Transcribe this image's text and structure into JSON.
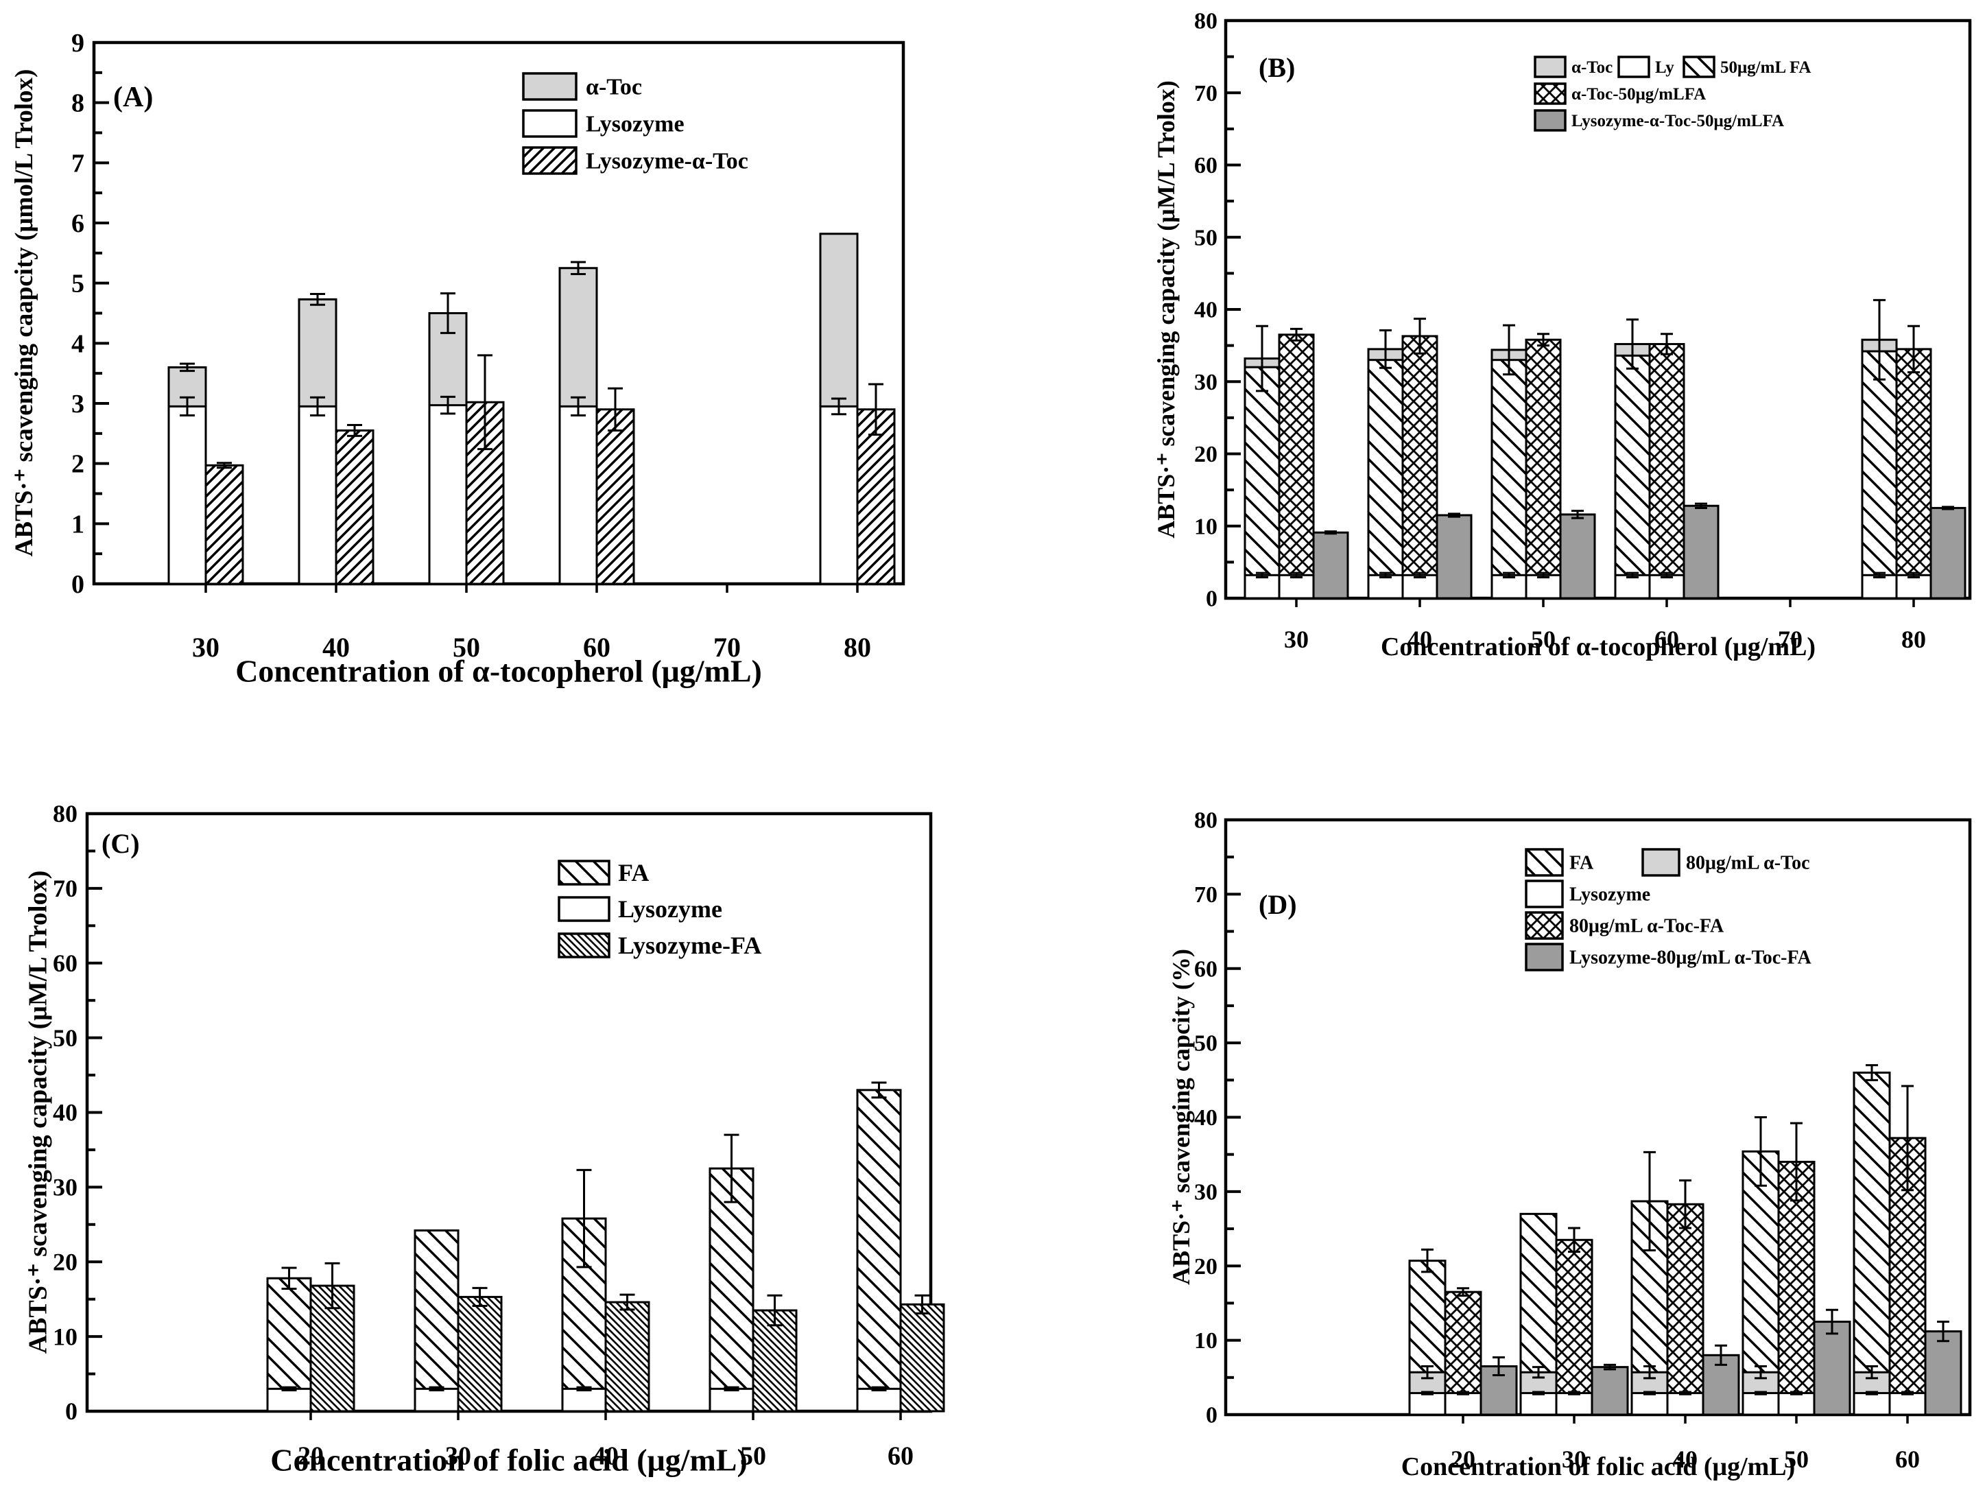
{
  "figure": {
    "background": "#ffffff",
    "colors": {
      "light_gray": "#d4d4d4",
      "dark_gray": "#9c9c9c",
      "line": "#000000",
      "bar_fill_white": "#ffffff"
    }
  },
  "chart_data": [
    {
      "id": "A",
      "type": "bar",
      "panel_label": "(A)",
      "ylabel": "ABTS·⁺ scavenging caapcity (μmol/L Trolox)",
      "xlabel": "Concentration of α-tocopherol (μg/mL)",
      "ylim": [
        0,
        9
      ],
      "ytick_major": 1,
      "ytick_minor": 0.5,
      "grid": false,
      "legend_position": "inside top-right",
      "categories": [
        30,
        40,
        50,
        60,
        70,
        80
      ],
      "series": [
        {
          "key": "atoc",
          "name": "α-Toc",
          "style": "solid-lightgray"
        },
        {
          "key": "ly",
          "name": "Lysozyme",
          "style": "solid-white"
        },
        {
          "key": "lt",
          "name": "Lysozyme-α-Toc",
          "style": "hatch-forward"
        }
      ],
      "columns": [
        [
          "atoc",
          "ly"
        ],
        [
          "lt"
        ]
      ],
      "legend_rows": [
        [
          "atoc"
        ],
        [
          "ly"
        ],
        [
          "lt"
        ]
      ],
      "groups": [
        {
          "category": 30,
          "bars": {
            "atoc": {
              "value": 3.6,
              "err": 0.06
            },
            "ly": {
              "value": 2.95,
              "err": 0.15
            },
            "lt": {
              "value": 1.97,
              "err": 0.04
            }
          }
        },
        {
          "category": 40,
          "bars": {
            "atoc": {
              "value": 4.73,
              "err": 0.09
            },
            "ly": {
              "value": 2.95,
              "err": 0.15
            },
            "lt": {
              "value": 2.55,
              "err": 0.09
            }
          }
        },
        {
          "category": 50,
          "bars": {
            "atoc": {
              "value": 4.5,
              "err": 0.33
            },
            "ly": {
              "value": 2.97,
              "err": 0.14
            },
            "lt": {
              "value": 3.02,
              "err": 0.78
            }
          }
        },
        {
          "category": 60,
          "bars": {
            "atoc": {
              "value": 5.25,
              "err": 0.1
            },
            "ly": {
              "value": 2.95,
              "err": 0.15
            },
            "lt": {
              "value": 2.9,
              "err": 0.35
            }
          }
        },
        {
          "category": 70,
          "bars": {}
        },
        {
          "category": 80,
          "bars": {
            "atoc": {
              "value": 5.82,
              "err": 0
            },
            "ly": {
              "value": 2.95,
              "err": 0.13
            },
            "lt": {
              "value": 2.9,
              "err": 0.42
            }
          }
        }
      ]
    },
    {
      "id": "B",
      "type": "bar",
      "panel_label": "(B)",
      "ylabel": "ABTS·⁺ scavenging capacity (μM/L Trolox)",
      "xlabel": "Concentration of α-tocopherol (μg/mL)",
      "ylim": [
        0,
        80
      ],
      "ytick_major": 10,
      "ytick_minor": 5,
      "grid": false,
      "legend_position": "inside top-center",
      "categories": [
        30,
        40,
        50,
        60,
        70,
        80
      ],
      "series": [
        {
          "key": "atoc",
          "name": "α-Toc",
          "style": "solid-lightgray"
        },
        {
          "key": "ly",
          "name": "Ly",
          "style": "solid-white"
        },
        {
          "key": "fa",
          "name": "50μg/mL FA",
          "style": "hatch-back-wide"
        },
        {
          "key": "xfa",
          "name": "α-Toc-50μg/mLFA",
          "style": "crosshatch"
        },
        {
          "key": "dark",
          "name": "Lysozyme-α-Toc-50μg/mLFA",
          "style": "solid-darkgray"
        }
      ],
      "columns": [
        [
          "atoc",
          "fa",
          "ly"
        ],
        [
          "xfa",
          "ly2"
        ],
        [
          "dark"
        ]
      ],
      "legend_rows": [
        [
          "atoc",
          "ly",
          "fa"
        ],
        [
          "xfa"
        ],
        [
          "dark"
        ]
      ],
      "groups": [
        {
          "category": 30,
          "bars": {
            "atoc": {
              "value": 33.2,
              "err": 4.5
            },
            "fa": {
              "value": 32.0,
              "err": 0
            },
            "ly": {
              "value": 3.2,
              "err": 0.3
            },
            "ly2": {
              "value": 3.2,
              "err": 0.3
            },
            "xfa": {
              "value": 36.5,
              "err": 0.8
            },
            "dark": {
              "value": 9.1,
              "err": 0.15
            }
          }
        },
        {
          "category": 40,
          "bars": {
            "atoc": {
              "value": 34.5,
              "err": 2.6
            },
            "fa": {
              "value": 33.0,
              "err": 0
            },
            "ly": {
              "value": 3.2,
              "err": 0.3
            },
            "ly2": {
              "value": 3.2,
              "err": 0.3
            },
            "xfa": {
              "value": 36.3,
              "err": 2.4
            },
            "dark": {
              "value": 11.5,
              "err": 0.2
            }
          }
        },
        {
          "category": 50,
          "bars": {
            "atoc": {
              "value": 34.4,
              "err": 3.4
            },
            "fa": {
              "value": 33.0,
              "err": 0
            },
            "ly": {
              "value": 3.2,
              "err": 0.3
            },
            "ly2": {
              "value": 3.2,
              "err": 0.3
            },
            "xfa": {
              "value": 35.8,
              "err": 0.8
            },
            "dark": {
              "value": 11.6,
              "err": 0.5
            }
          }
        },
        {
          "category": 60,
          "bars": {
            "atoc": {
              "value": 35.2,
              "err": 3.4
            },
            "fa": {
              "value": 33.6,
              "err": 0
            },
            "ly": {
              "value": 3.2,
              "err": 0.3
            },
            "ly2": {
              "value": 3.2,
              "err": 0.3
            },
            "xfa": {
              "value": 35.2,
              "err": 1.4
            },
            "dark": {
              "value": 12.8,
              "err": 0.3
            }
          }
        },
        {
          "category": 70,
          "bars": {}
        },
        {
          "category": 80,
          "bars": {
            "atoc": {
              "value": 35.8,
              "err": 5.5
            },
            "fa": {
              "value": 34.2,
              "err": 0
            },
            "ly": {
              "value": 3.2,
              "err": 0.3
            },
            "ly2": {
              "value": 3.2,
              "err": 0.3
            },
            "xfa": {
              "value": 34.5,
              "err": 3.2
            },
            "dark": {
              "value": 12.5,
              "err": 0.15
            }
          }
        }
      ]
    },
    {
      "id": "C",
      "type": "bar",
      "panel_label": "(C)",
      "ylabel": "ABTS·⁺ scavenging capacity (μM/L Trolox)",
      "xlabel": "Concentration of folic acid (μg/mL)",
      "ylim": [
        0,
        80
      ],
      "ytick_major": 10,
      "ytick_minor": 5,
      "grid": false,
      "legend_position": "inside top-right",
      "categories": [
        20,
        30,
        40,
        50,
        60
      ],
      "series": [
        {
          "key": "fa",
          "name": "FA",
          "style": "hatch-back-wide"
        },
        {
          "key": "ly",
          "name": "Lysozyme",
          "style": "solid-white"
        },
        {
          "key": "lfa",
          "name": "Lysozyme-FA",
          "style": "hatch-back-dense"
        }
      ],
      "columns": [
        [
          "fa",
          "ly"
        ],
        [
          "lfa"
        ]
      ],
      "legend_rows": [
        [
          "fa"
        ],
        [
          "ly"
        ],
        [
          "lfa"
        ]
      ],
      "groups": [
        {
          "category": 20,
          "bars": {
            "fa": {
              "value": 17.8,
              "err": 1.4
            },
            "ly": {
              "value": 3.0,
              "err": 0.2
            },
            "lfa": {
              "value": 16.8,
              "err": 3.0
            }
          }
        },
        {
          "category": 30,
          "bars": {
            "fa": {
              "value": 24.2,
              "err": 0
            },
            "ly": {
              "value": 3.0,
              "err": 0.2
            },
            "lfa": {
              "value": 15.3,
              "err": 1.2
            }
          }
        },
        {
          "category": 40,
          "bars": {
            "fa": {
              "value": 25.8,
              "err": 6.5
            },
            "ly": {
              "value": 3.0,
              "err": 0.2
            },
            "lfa": {
              "value": 14.6,
              "err": 1.0
            }
          }
        },
        {
          "category": 50,
          "bars": {
            "fa": {
              "value": 32.5,
              "err": 4.5
            },
            "ly": {
              "value": 3.0,
              "err": 0.2
            },
            "lfa": {
              "value": 13.5,
              "err": 2.0
            }
          }
        },
        {
          "category": 60,
          "bars": {
            "fa": {
              "value": 43.0,
              "err": 1.0
            },
            "ly": {
              "value": 3.0,
              "err": 0.2
            },
            "lfa": {
              "value": 14.3,
              "err": 1.2
            }
          }
        }
      ]
    },
    {
      "id": "D",
      "type": "bar",
      "panel_label": "(D)",
      "ylabel": "ABTS·⁺ scavenging capcity (%)",
      "xlabel": "Concentration of folic acid (μg/mL)",
      "ylim": [
        0,
        80
      ],
      "ytick_major": 10,
      "ytick_minor": 5,
      "grid": false,
      "legend_position": "inside top-center",
      "categories": [
        20,
        30,
        40,
        50,
        60
      ],
      "series": [
        {
          "key": "fa",
          "name": "FA",
          "style": "hatch-back-wide"
        },
        {
          "key": "atoc",
          "name": "80μg/mL α-Toc",
          "style": "solid-lightgray"
        },
        {
          "key": "ly",
          "name": "Lysozyme",
          "style": "solid-white"
        },
        {
          "key": "xfa",
          "name": "80μg/mL α-Toc-FA",
          "style": "crosshatch"
        },
        {
          "key": "dark",
          "name": "Lysozyme-80μg/mL α-Toc-FA",
          "style": "solid-darkgray"
        }
      ],
      "columns": [
        [
          "fa",
          "atoc",
          "ly"
        ],
        [
          "xfa",
          "ly2"
        ],
        [
          "dark"
        ]
      ],
      "legend_rows": [
        [
          "fa",
          "atoc"
        ],
        [
          "ly"
        ],
        [
          "xfa"
        ],
        [
          "dark"
        ]
      ],
      "groups": [
        {
          "category": 20,
          "bars": {
            "fa": {
              "value": 20.7,
              "err": 1.5
            },
            "atoc": {
              "value": 5.7,
              "err": 0.8
            },
            "ly": {
              "value": 2.9,
              "err": 0.15
            },
            "ly2": {
              "value": 2.9,
              "err": 0.15
            },
            "xfa": {
              "value": 16.5,
              "err": 0.5
            },
            "dark": {
              "value": 6.5,
              "err": 1.2
            }
          }
        },
        {
          "category": 30,
          "bars": {
            "fa": {
              "value": 27.0,
              "err": 0
            },
            "atoc": {
              "value": 5.7,
              "err": 0.7
            },
            "ly": {
              "value": 2.9,
              "err": 0.15
            },
            "ly2": {
              "value": 2.9,
              "err": 0.15
            },
            "xfa": {
              "value": 23.5,
              "err": 1.6
            },
            "dark": {
              "value": 6.4,
              "err": 0.3
            }
          }
        },
        {
          "category": 40,
          "bars": {
            "fa": {
              "value": 28.7,
              "err": 6.6
            },
            "atoc": {
              "value": 5.7,
              "err": 0.8
            },
            "ly": {
              "value": 2.9,
              "err": 0.15
            },
            "ly2": {
              "value": 2.9,
              "err": 0.15
            },
            "xfa": {
              "value": 28.3,
              "err": 3.2
            },
            "dark": {
              "value": 8.0,
              "err": 1.3
            }
          }
        },
        {
          "category": 50,
          "bars": {
            "fa": {
              "value": 35.4,
              "err": 4.6
            },
            "atoc": {
              "value": 5.7,
              "err": 0.8
            },
            "ly": {
              "value": 2.9,
              "err": 0.15
            },
            "ly2": {
              "value": 2.9,
              "err": 0.15
            },
            "xfa": {
              "value": 34.0,
              "err": 5.2
            },
            "dark": {
              "value": 12.5,
              "err": 1.6
            }
          }
        },
        {
          "category": 60,
          "bars": {
            "fa": {
              "value": 46.0,
              "err": 1.0
            },
            "atoc": {
              "value": 5.7,
              "err": 0.8
            },
            "ly": {
              "value": 2.9,
              "err": 0.15
            },
            "ly2": {
              "value": 2.9,
              "err": 0.15
            },
            "xfa": {
              "value": 37.2,
              "err": 7.0
            },
            "dark": {
              "value": 11.2,
              "err": 1.3
            }
          }
        }
      ]
    }
  ]
}
